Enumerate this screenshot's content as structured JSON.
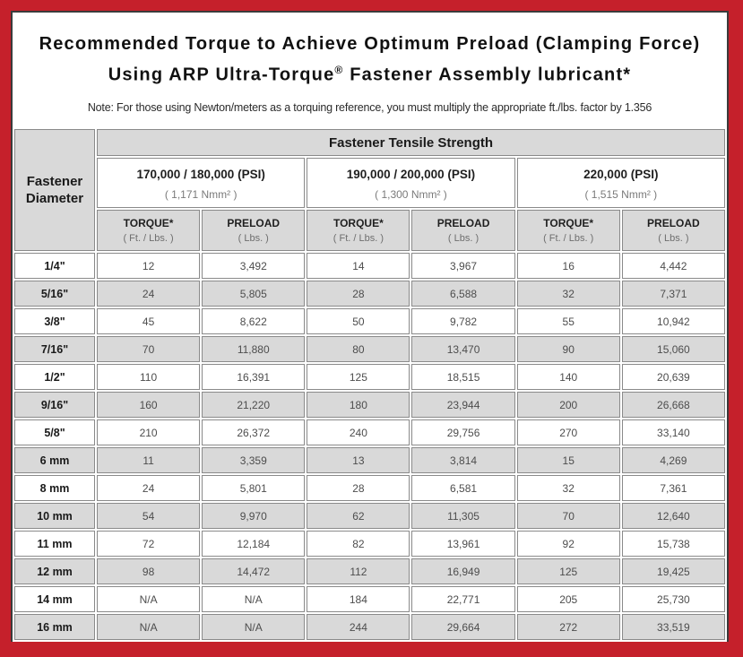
{
  "frame_color": "#c5202b",
  "title": {
    "line1": "Recommended Torque to Achieve Optimum Preload (Clamping Force)",
    "line2_prefix": "Using ARP Ultra-Torque",
    "line2_reg": "®",
    "line2_suffix": " Fastener Assembly lubricant*",
    "note": "Note: For those using Newton/meters as a torquing reference, you must multiply the appropriate ft./lbs. factor by 1.356"
  },
  "table": {
    "corner_header": "Fastener Diameter",
    "top_header": "Fastener Tensile Strength",
    "groups": [
      {
        "psi": "170,000 / 180,000 (PSI)",
        "nmm": "( 1,171 Nmm² )"
      },
      {
        "psi": "190,000 / 200,000 (PSI)",
        "nmm": "( 1,300 Nmm² )"
      },
      {
        "psi": "220,000 (PSI)",
        "nmm": "( 1,515 Nmm² )"
      }
    ],
    "sub_headers": {
      "torque_label": "TORQUE*",
      "torque_unit": "( Ft. / Lbs. )",
      "preload_label": "PRELOAD",
      "preload_unit": "( Lbs. )"
    },
    "rows": [
      {
        "diameter": "1/4\"",
        "values": [
          "12",
          "3,492",
          "14",
          "3,967",
          "16",
          "4,442"
        ]
      },
      {
        "diameter": "5/16\"",
        "values": [
          "24",
          "5,805",
          "28",
          "6,588",
          "32",
          "7,371"
        ]
      },
      {
        "diameter": "3/8\"",
        "values": [
          "45",
          "8,622",
          "50",
          "9,782",
          "55",
          "10,942"
        ]
      },
      {
        "diameter": "7/16\"",
        "values": [
          "70",
          "11,880",
          "80",
          "13,470",
          "90",
          "15,060"
        ]
      },
      {
        "diameter": "1/2\"",
        "values": [
          "110",
          "16,391",
          "125",
          "18,515",
          "140",
          "20,639"
        ]
      },
      {
        "diameter": "9/16\"",
        "values": [
          "160",
          "21,220",
          "180",
          "23,944",
          "200",
          "26,668"
        ]
      },
      {
        "diameter": "5/8\"",
        "values": [
          "210",
          "26,372",
          "240",
          "29,756",
          "270",
          "33,140"
        ]
      },
      {
        "diameter": "6 mm",
        "values": [
          "11",
          "3,359",
          "13",
          "3,814",
          "15",
          "4,269"
        ]
      },
      {
        "diameter": "8 mm",
        "values": [
          "24",
          "5,801",
          "28",
          "6,581",
          "32",
          "7,361"
        ]
      },
      {
        "diameter": "10 mm",
        "values": [
          "54",
          "9,970",
          "62",
          "11,305",
          "70",
          "12,640"
        ]
      },
      {
        "diameter": "11 mm",
        "values": [
          "72",
          "12,184",
          "82",
          "13,961",
          "92",
          "15,738"
        ]
      },
      {
        "diameter": "12 mm",
        "values": [
          "98",
          "14,472",
          "112",
          "16,949",
          "125",
          "19,425"
        ]
      },
      {
        "diameter": "14 mm",
        "values": [
          "N/A",
          "N/A",
          "184",
          "22,771",
          "205",
          "25,730"
        ]
      },
      {
        "diameter": "16 mm",
        "values": [
          "N/A",
          "N/A",
          "244",
          "29,664",
          "272",
          "33,519"
        ]
      }
    ]
  }
}
